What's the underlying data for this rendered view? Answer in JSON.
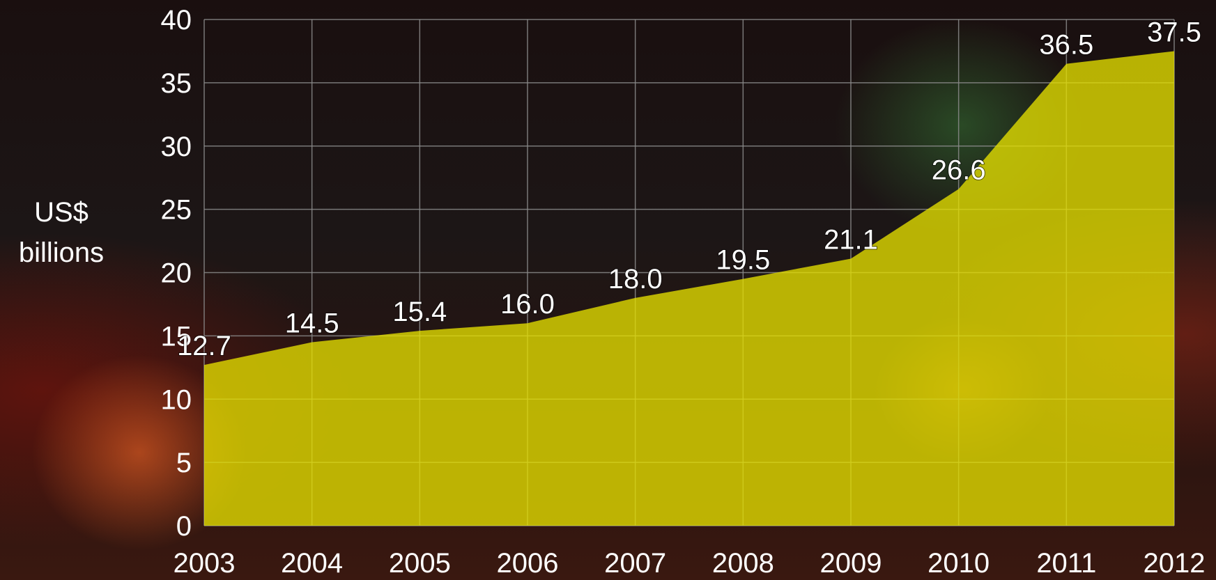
{
  "chart_data": {
    "type": "area",
    "x": [
      "2003",
      "2004",
      "2005",
      "2006",
      "2007",
      "2008",
      "2009",
      "2010",
      "2011",
      "2012"
    ],
    "values": [
      12.7,
      14.5,
      15.4,
      16.0,
      18.0,
      19.5,
      21.1,
      26.6,
      36.5,
      37.5
    ],
    "data_labels": [
      "12.7",
      "14.5",
      "15.4",
      "16.0",
      "18.0",
      "19.5",
      "21.1",
      "26.6",
      "36.5",
      "37.5"
    ],
    "ylabel_lines": [
      "US$",
      "billions"
    ],
    "yticks": [
      0,
      5,
      10,
      15,
      20,
      25,
      30,
      35,
      40
    ],
    "ylim": [
      0,
      40
    ],
    "grid": true,
    "colors": {
      "area": "#e6e000",
      "text": "#ffffff",
      "grid": "#8a8a8a"
    }
  }
}
